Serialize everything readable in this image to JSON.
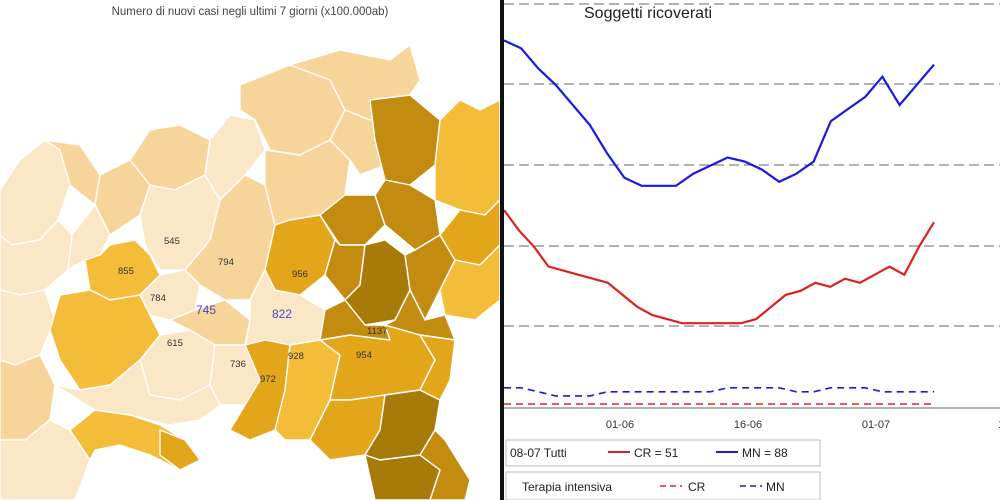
{
  "map": {
    "title": "Numero di nuovi casi negli ultimi 7 giorni (x100.000ab)",
    "colors": {
      "very_light": "#fbe6c6",
      "light": "#f7d49a",
      "medium": "#f3bd3a",
      "gold": "#e3a51a",
      "dark": "#c38c10",
      "darker": "#a87a0a",
      "border": "#ffffff"
    },
    "labels": [
      {
        "id": "545",
        "text": "545",
        "color": "default"
      },
      {
        "id": "794",
        "text": "794",
        "color": "default"
      },
      {
        "id": "855",
        "text": "855",
        "color": "default"
      },
      {
        "id": "784",
        "text": "784",
        "color": "default"
      },
      {
        "id": "745",
        "text": "745",
        "color": "blue"
      },
      {
        "id": "822",
        "text": "822",
        "color": "blue"
      },
      {
        "id": "956",
        "text": "956",
        "color": "default"
      },
      {
        "id": "615",
        "text": "615",
        "color": "default"
      },
      {
        "id": "736",
        "text": "736",
        "color": "default"
      },
      {
        "id": "972",
        "text": "972",
        "color": "default"
      },
      {
        "id": "928",
        "text": "928",
        "color": "default"
      },
      {
        "id": "954",
        "text": "954",
        "color": "default"
      },
      {
        "id": "1137",
        "text": "1137",
        "color": "default"
      }
    ]
  },
  "chart_data": {
    "type": "line",
    "title": "Soggetti ricoverati",
    "x_tick_labels": [
      "01-06",
      "16-06",
      "01-07",
      "16"
    ],
    "grid": "horizontal dashed",
    "series": [
      {
        "name": "CR",
        "group": "Tutti",
        "style": "solid",
        "color": "#e02020",
        "values": [
          0.49,
          0.44,
          0.4,
          0.35,
          0.34,
          0.33,
          0.32,
          0.31,
          0.28,
          0.25,
          0.23,
          0.22,
          0.21,
          0.21,
          0.21,
          0.21,
          0.21,
          0.22,
          0.25,
          0.28,
          0.29,
          0.31,
          0.3,
          0.32,
          0.31,
          0.33,
          0.35,
          0.33,
          0.4,
          0.46
        ]
      },
      {
        "name": "MN",
        "group": "Tutti",
        "style": "solid",
        "color": "#1a1ae0",
        "values": [
          0.91,
          0.89,
          0.84,
          0.8,
          0.75,
          0.7,
          0.63,
          0.57,
          0.55,
          0.55,
          0.55,
          0.58,
          0.6,
          0.62,
          0.61,
          0.59,
          0.56,
          0.58,
          0.61,
          0.71,
          0.74,
          0.77,
          0.82,
          0.75,
          0.8,
          0.85
        ]
      },
      {
        "name": "CR",
        "group": "Terapia intensiva",
        "style": "dashed",
        "color": "#e02020",
        "values": [
          0.01,
          0.01,
          0.01,
          0.01,
          0.01,
          0.01,
          0.01,
          0.01,
          0.01,
          0.01,
          0.01,
          0.01,
          0.01,
          0.01,
          0.01,
          0.01,
          0.01,
          0.01,
          0.01,
          0.01,
          0.01,
          0.01,
          0.01,
          0.01,
          0.01,
          0.01,
          0.01,
          0.01,
          0.01,
          0.01
        ]
      },
      {
        "name": "MN",
        "group": "Terapia intensiva",
        "style": "dashed",
        "color": "#1a1ae0",
        "values": [
          0.05,
          0.05,
          0.04,
          0.03,
          0.03,
          0.03,
          0.04,
          0.04,
          0.04,
          0.04,
          0.04,
          0.04,
          0.04,
          0.05,
          0.05,
          0.05,
          0.05,
          0.04,
          0.04,
          0.05,
          0.05,
          0.05,
          0.04,
          0.04,
          0.04,
          0.04
        ]
      }
    ],
    "legend": {
      "row1_prefix": "08-07 Tutti",
      "cr_label": "CR = 51",
      "mn_label": "MN = 88",
      "row2_prefix": "Terapia intensiva",
      "cr_label2": "CR",
      "mn_label2": "MN"
    }
  }
}
